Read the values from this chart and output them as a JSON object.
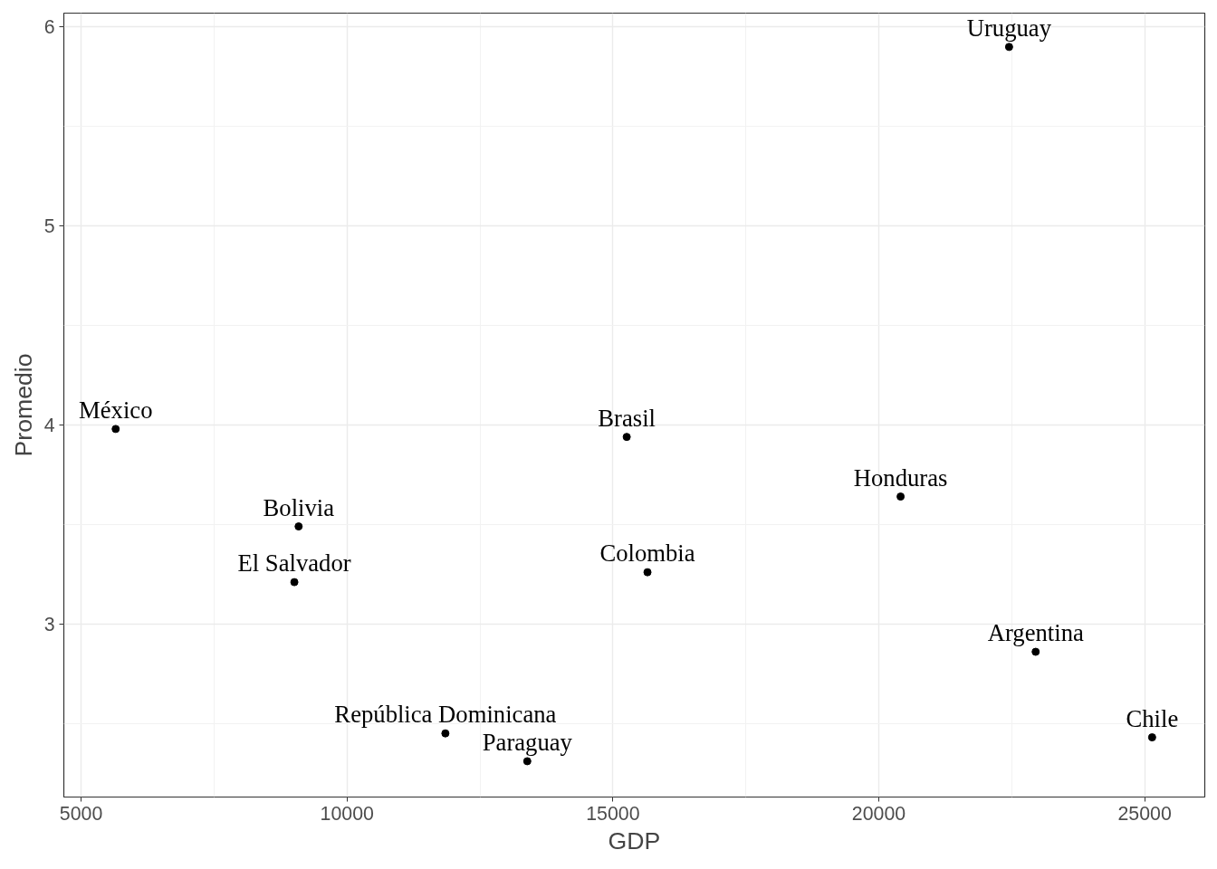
{
  "chart_data": {
    "type": "scatter",
    "xlabel": "GDP",
    "ylabel": "Promedio",
    "x": [
      22450,
      5650,
      15260,
      20410,
      9090,
      9010,
      15650,
      22950,
      11850,
      13390,
      25140
    ],
    "values": [
      5.9,
      3.98,
      3.94,
      3.64,
      3.49,
      3.21,
      3.26,
      2.86,
      2.45,
      2.31,
      2.43
    ],
    "color": "#000000",
    "marker": "circle",
    "annotations": [
      {
        "text": "Uruguay",
        "x": 22450,
        "y": 5.9
      },
      {
        "text": "México",
        "x": 5650,
        "y": 3.98
      },
      {
        "text": "Brasil",
        "x": 15260,
        "y": 3.94
      },
      {
        "text": "Honduras",
        "x": 20410,
        "y": 3.64
      },
      {
        "text": "Bolivia",
        "x": 9090,
        "y": 3.49
      },
      {
        "text": "El Salvador",
        "x": 9010,
        "y": 3.21
      },
      {
        "text": "Colombia",
        "x": 15650,
        "y": 3.26
      },
      {
        "text": "Argentina",
        "x": 22950,
        "y": 2.86
      },
      {
        "text": "República Dominicana",
        "x": 11850,
        "y": 2.45
      },
      {
        "text": "Paraguay",
        "x": 13390,
        "y": 2.31
      },
      {
        "text": "Chile",
        "x": 25140,
        "y": 2.43
      }
    ],
    "xlim": [
      4675,
      26130
    ],
    "ylim": [
      2.13,
      6.07
    ],
    "xticks": [
      5000,
      10000,
      15000,
      20000,
      25000
    ],
    "yticks": [
      3,
      4,
      5,
      6
    ],
    "grid": true
  }
}
